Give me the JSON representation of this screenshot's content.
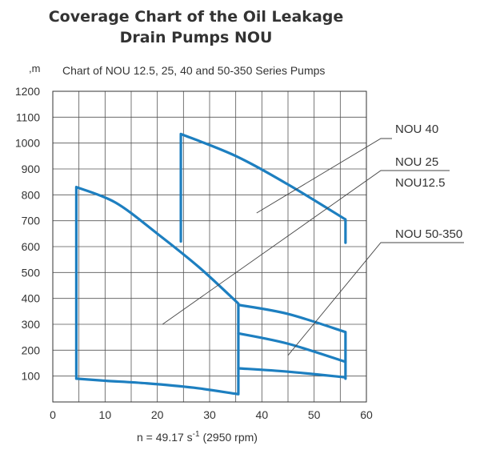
{
  "chart_data": {
    "type": "line",
    "title_line1": "Coverage Chart of the Oil Leakage",
    "title_line2": "Drain Pumps NOU",
    "subtitle": "Chart of NOU 12.5, 25,  40 and 50-350 Series Pumps",
    "y_unit": ",m",
    "xlabel_main": "n = 49.17 s",
    "xlabel_sup": "-1",
    "xlabel_tail": " (2950 rpm)",
    "xlim": [
      0,
      60
    ],
    "ylim": [
      0,
      1200
    ],
    "grid": true,
    "x_ticks": [
      "0",
      "10",
      "20",
      "30",
      "40",
      "50",
      "60"
    ],
    "y_ticks": [
      "100",
      "200",
      "300",
      "400",
      "500",
      "600",
      "700",
      "800",
      "900",
      "1000",
      "1100",
      "1200"
    ],
    "series": [
      {
        "name": "NOU12.5 / NOU 25",
        "x": [
          4.5,
          4.5,
          12,
          20,
          28,
          35.5,
          35.5,
          27,
          18,
          10,
          4.5
        ],
        "y": [
          90,
          830,
          770,
          650,
          520,
          380,
          30,
          55,
          72,
          82,
          90
        ]
      },
      {
        "name": "NOU 40",
        "x": [
          24.5,
          24.5,
          35,
          45,
          56,
          56
        ],
        "y": [
          620,
          1035,
          950,
          840,
          705,
          615
        ]
      },
      {
        "name": "NOU 50-350 (upper)",
        "x": [
          35.5,
          45,
          56,
          56
        ],
        "y": [
          375,
          340,
          270,
          90
        ]
      },
      {
        "name": "NOU 50-350 (middle)",
        "x": [
          35.5,
          45,
          56
        ],
        "y": [
          265,
          225,
          155
        ]
      },
      {
        "name": "NOU 50-350 (lower)",
        "x": [
          35.5,
          45,
          56
        ],
        "y": [
          130,
          117,
          95
        ]
      }
    ],
    "annotations": [
      {
        "id": "nou40",
        "text": "NOU 40",
        "point": [
          39,
          730
        ]
      },
      {
        "id": "nou25",
        "text": "NOU 25",
        "point": [
          21,
          300
        ]
      },
      {
        "id": "nou125",
        "text": "NOU12.5"
      },
      {
        "id": "nou50",
        "text": "NOU 50-350",
        "point": [
          45,
          180
        ]
      }
    ]
  }
}
